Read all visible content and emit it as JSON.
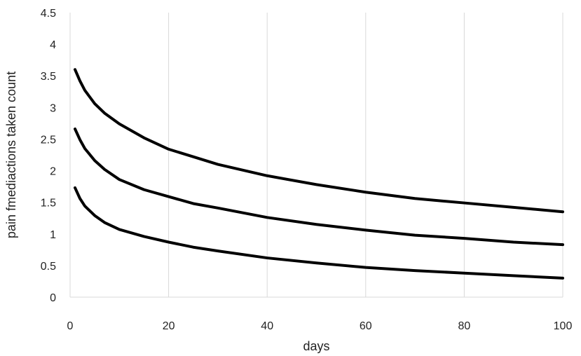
{
  "chart_data": {
    "type": "line",
    "title": "",
    "xlabel": "days",
    "ylabel": "pain fmediactions taken count",
    "xlim": [
      0,
      100
    ],
    "ylim": [
      0,
      4.5
    ],
    "xticks": [
      0,
      20,
      40,
      60,
      80,
      100
    ],
    "yticks": [
      0,
      0.5,
      1,
      1.5,
      2,
      2.5,
      3,
      3.5,
      4,
      4.5
    ],
    "grid": {
      "vertical": true,
      "horizontal": false
    },
    "legend": "none",
    "series_color": "#000000",
    "series": [
      {
        "x": [
          1,
          2,
          3,
          5,
          7,
          10,
          15,
          20,
          25,
          30,
          40,
          50,
          60,
          70,
          80,
          90,
          100
        ],
        "values": [
          3.6,
          3.42,
          3.27,
          3.06,
          2.91,
          2.74,
          2.52,
          2.34,
          2.22,
          2.1,
          1.92,
          1.78,
          1.66,
          1.56,
          1.49,
          1.42,
          1.35
        ]
      },
      {
        "x": [
          1,
          2,
          3,
          5,
          7,
          10,
          15,
          20,
          25,
          30,
          40,
          50,
          60,
          70,
          80,
          90,
          100
        ],
        "values": [
          2.66,
          2.49,
          2.35,
          2.16,
          2.02,
          1.86,
          1.7,
          1.59,
          1.48,
          1.41,
          1.26,
          1.15,
          1.06,
          0.98,
          0.93,
          0.87,
          0.83
        ]
      },
      {
        "x": [
          1,
          2,
          3,
          5,
          7,
          10,
          15,
          20,
          25,
          30,
          40,
          50,
          60,
          70,
          80,
          90,
          100
        ],
        "values": [
          1.73,
          1.56,
          1.44,
          1.29,
          1.18,
          1.07,
          0.96,
          0.87,
          0.79,
          0.73,
          0.62,
          0.54,
          0.47,
          0.42,
          0.38,
          0.34,
          0.3
        ]
      }
    ]
  }
}
